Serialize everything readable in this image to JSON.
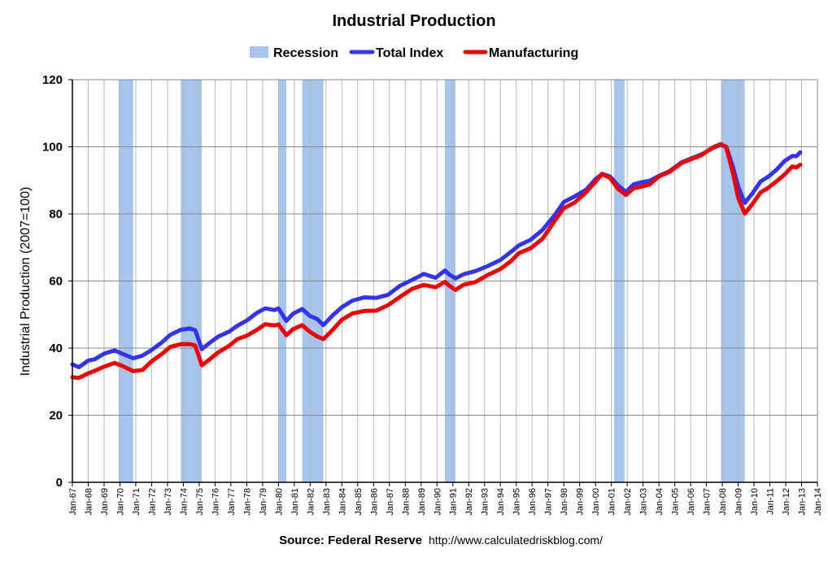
{
  "chart_data": {
    "type": "line",
    "title": "Industrial Production",
    "ylabel": "Industrial Production (2007=100)",
    "ylim": [
      0,
      120
    ],
    "yticks": [
      0,
      20,
      40,
      60,
      80,
      100,
      120
    ],
    "xticks": [
      "Jan-67",
      "Jan-68",
      "Jan-69",
      "Jan-70",
      "Jan-71",
      "Jan-72",
      "Jan-73",
      "Jan-74",
      "Jan-75",
      "Jan-76",
      "Jan-77",
      "Jan-78",
      "Jan-79",
      "Jan-80",
      "Jan-81",
      "Jan-82",
      "Jan-83",
      "Jan-84",
      "Jan-85",
      "Jan-86",
      "Jan-87",
      "Jan-88",
      "Jan-89",
      "Jan-90",
      "Jan-91",
      "Jan-92",
      "Jan-93",
      "Jan-94",
      "Jan-95",
      "Jan-96",
      "Jan-97",
      "Jan-98",
      "Jan-99",
      "Jan-00",
      "Jan-01",
      "Jan-02",
      "Jan-03",
      "Jan-04",
      "Jan-05",
      "Jan-06",
      "Jan-07",
      "Jan-08",
      "Jan-09",
      "Jan-10",
      "Jan-11",
      "Jan-12",
      "Jan-13",
      "Jan-14"
    ],
    "grid": true,
    "legend_position": "top",
    "recession_label": "Recession",
    "recessions": [
      {
        "start": "1969-12",
        "end": "1970-11"
      },
      {
        "start": "1973-11",
        "end": "1975-03"
      },
      {
        "start": "1980-01",
        "end": "1980-07"
      },
      {
        "start": "1981-07",
        "end": "1982-11"
      },
      {
        "start": "1990-07",
        "end": "1991-03"
      },
      {
        "start": "2001-03",
        "end": "2001-11"
      },
      {
        "start": "2007-12",
        "end": "2009-06"
      }
    ],
    "series": [
      {
        "name": "Total Index",
        "color": "#3333ee",
        "points": [
          [
            "1967-01",
            35.0
          ],
          [
            "1967-06",
            34.5
          ],
          [
            "1968-01",
            36.0
          ],
          [
            "1968-06",
            37.0
          ],
          [
            "1969-01",
            38.0
          ],
          [
            "1969-09",
            39.0
          ],
          [
            "1970-03",
            38.0
          ],
          [
            "1970-11",
            36.8
          ],
          [
            "1971-06",
            37.8
          ],
          [
            "1972-01",
            39.5
          ],
          [
            "1972-09",
            42.0
          ],
          [
            "1973-03",
            44.2
          ],
          [
            "1973-11",
            45.8
          ],
          [
            "1974-06",
            45.5
          ],
          [
            "1974-10",
            45.0
          ],
          [
            "1975-03",
            40.0
          ],
          [
            "1975-09",
            41.8
          ],
          [
            "1976-03",
            43.5
          ],
          [
            "1976-12",
            45.0
          ],
          [
            "1977-06",
            46.8
          ],
          [
            "1978-01",
            48.0
          ],
          [
            "1978-09",
            50.3
          ],
          [
            "1979-03",
            51.5
          ],
          [
            "1979-10",
            51.7
          ],
          [
            "1980-01",
            51.5
          ],
          [
            "1980-07",
            47.8
          ],
          [
            "1980-12",
            50.5
          ],
          [
            "1981-07",
            51.5
          ],
          [
            "1982-01",
            49.5
          ],
          [
            "1982-06",
            48.7
          ],
          [
            "1982-11",
            47.0
          ],
          [
            "1983-06",
            49.5
          ],
          [
            "1984-01",
            52.5
          ],
          [
            "1984-09",
            54.5
          ],
          [
            "1985-06",
            54.8
          ],
          [
            "1986-03",
            55.2
          ],
          [
            "1986-12",
            55.8
          ],
          [
            "1987-09",
            58.5
          ],
          [
            "1988-06",
            60.5
          ],
          [
            "1989-03",
            61.8
          ],
          [
            "1989-12",
            61.3
          ],
          [
            "1990-07",
            62.8
          ],
          [
            "1990-10",
            62.3
          ],
          [
            "1991-03",
            60.5
          ],
          [
            "1991-09",
            61.8
          ],
          [
            "1992-06",
            63.0
          ],
          [
            "1993-03",
            64.5
          ],
          [
            "1994-01",
            66.5
          ],
          [
            "1994-09",
            69.0
          ],
          [
            "1995-03",
            71.0
          ],
          [
            "1995-12",
            72.0
          ],
          [
            "1996-09",
            75.5
          ],
          [
            "1997-06",
            79.5
          ],
          [
            "1998-01",
            83.5
          ],
          [
            "1998-09",
            85.0
          ],
          [
            "1999-06",
            87.5
          ],
          [
            "2000-01",
            90.0
          ],
          [
            "2000-06",
            92.3
          ],
          [
            "2000-12",
            91.5
          ],
          [
            "2001-06",
            88.8
          ],
          [
            "2001-12",
            86.8
          ],
          [
            "2002-06",
            89.0
          ],
          [
            "2002-12",
            89.5
          ],
          [
            "2003-06",
            89.8
          ],
          [
            "2004-01",
            91.5
          ],
          [
            "2004-09",
            93.0
          ],
          [
            "2005-06",
            95.0
          ],
          [
            "2006-01",
            96.8
          ],
          [
            "2006-09",
            98.0
          ],
          [
            "2007-06",
            99.5
          ],
          [
            "2007-12",
            100.5
          ],
          [
            "2008-04",
            100.0
          ],
          [
            "2008-09",
            94.0
          ],
          [
            "2009-01",
            88.0
          ],
          [
            "2009-06",
            83.5
          ],
          [
            "2009-12",
            86.5
          ],
          [
            "2010-06",
            90.0
          ],
          [
            "2010-12",
            91.5
          ],
          [
            "2011-06",
            93.5
          ],
          [
            "2011-12",
            96.0
          ],
          [
            "2012-06",
            97.5
          ],
          [
            "2012-09",
            97.0
          ],
          [
            "2012-12",
            98.5
          ]
        ]
      },
      {
        "name": "Manufacturing",
        "color": "#ee0000",
        "points": [
          [
            "1967-01",
            31.5
          ],
          [
            "1967-06",
            31.0
          ],
          [
            "1968-01",
            32.5
          ],
          [
            "1968-06",
            33.3
          ],
          [
            "1969-01",
            34.3
          ],
          [
            "1969-09",
            35.3
          ],
          [
            "1970-03",
            34.3
          ],
          [
            "1970-11",
            32.8
          ],
          [
            "1971-06",
            33.8
          ],
          [
            "1972-01",
            35.8
          ],
          [
            "1972-09",
            38.2
          ],
          [
            "1973-03",
            40.3
          ],
          [
            "1973-11",
            41.3
          ],
          [
            "1974-06",
            41.0
          ],
          [
            "1974-10",
            40.5
          ],
          [
            "1975-03",
            35.2
          ],
          [
            "1975-09",
            37.0
          ],
          [
            "1976-03",
            39.0
          ],
          [
            "1976-12",
            40.5
          ],
          [
            "1977-06",
            42.5
          ],
          [
            "1978-01",
            43.8
          ],
          [
            "1978-09",
            45.5
          ],
          [
            "1979-03",
            47.0
          ],
          [
            "1979-10",
            47.0
          ],
          [
            "1980-01",
            46.8
          ],
          [
            "1980-07",
            43.5
          ],
          [
            "1980-12",
            46.0
          ],
          [
            "1981-07",
            46.5
          ],
          [
            "1982-01",
            44.5
          ],
          [
            "1982-06",
            43.8
          ],
          [
            "1982-11",
            42.5
          ],
          [
            "1983-06",
            45.5
          ],
          [
            "1984-01",
            48.5
          ],
          [
            "1984-09",
            50.5
          ],
          [
            "1985-06",
            50.8
          ],
          [
            "1986-03",
            51.5
          ],
          [
            "1986-12",
            52.5
          ],
          [
            "1987-09",
            55.5
          ],
          [
            "1988-06",
            57.5
          ],
          [
            "1989-03",
            58.8
          ],
          [
            "1989-12",
            58.3
          ],
          [
            "1990-07",
            59.5
          ],
          [
            "1990-10",
            59.0
          ],
          [
            "1991-03",
            57.0
          ],
          [
            "1991-09",
            58.5
          ],
          [
            "1992-06",
            60.0
          ],
          [
            "1993-03",
            61.5
          ],
          [
            "1994-01",
            63.5
          ],
          [
            "1994-09",
            66.0
          ],
          [
            "1995-03",
            68.5
          ],
          [
            "1995-12",
            69.5
          ],
          [
            "1996-09",
            73.0
          ],
          [
            "1997-06",
            77.5
          ],
          [
            "1998-01",
            82.0
          ],
          [
            "1998-09",
            83.5
          ],
          [
            "1999-06",
            86.5
          ],
          [
            "2000-01",
            89.5
          ],
          [
            "2000-06",
            92.0
          ],
          [
            "2000-12",
            91.0
          ],
          [
            "2001-06",
            87.8
          ],
          [
            "2001-12",
            86.0
          ],
          [
            "2002-06",
            88.0
          ],
          [
            "2002-12",
            88.5
          ],
          [
            "2003-06",
            89.0
          ],
          [
            "2004-01",
            91.0
          ],
          [
            "2004-09",
            92.5
          ],
          [
            "2005-06",
            95.0
          ],
          [
            "2006-01",
            96.5
          ],
          [
            "2006-09",
            97.8
          ],
          [
            "2007-06",
            99.5
          ],
          [
            "2007-12",
            100.5
          ],
          [
            "2008-04",
            99.5
          ],
          [
            "2008-09",
            92.5
          ],
          [
            "2009-01",
            85.0
          ],
          [
            "2009-06",
            80.0
          ],
          [
            "2009-12",
            83.0
          ],
          [
            "2010-06",
            86.5
          ],
          [
            "2010-12",
            88.0
          ],
          [
            "2011-06",
            90.0
          ],
          [
            "2011-12",
            92.0
          ],
          [
            "2012-06",
            94.5
          ],
          [
            "2012-09",
            93.5
          ],
          [
            "2012-12",
            95.0
          ]
        ]
      }
    ]
  },
  "source": {
    "label": "Source: Federal Reserve",
    "url": "http://www.calculatedriskblog.com/"
  },
  "colors": {
    "recession": "#a6c4ec",
    "grid": "#b8b8b8",
    "axis": "#000000"
  }
}
